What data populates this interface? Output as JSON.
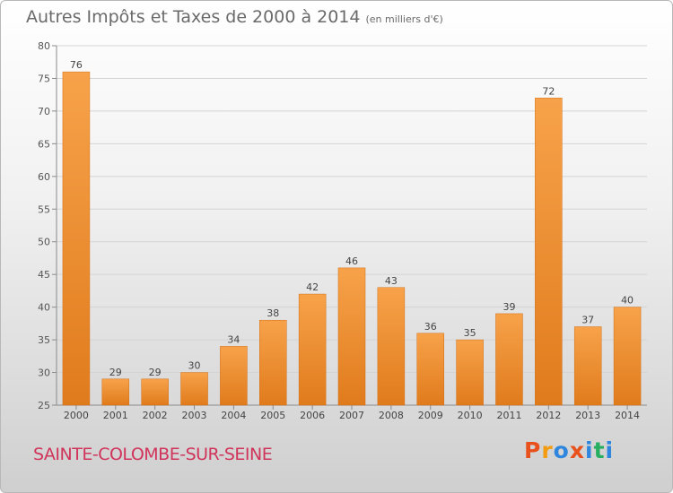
{
  "title": "Autres Impôts et Taxes de 2000 à 2014",
  "unit": "(en milliers d'€)",
  "commune": "SAINTE-COLOMBE-SUR-SEINE",
  "logo": "Proxiti",
  "colors": {
    "bar_light": "#f7a24a",
    "bar_dark": "#e07b1c",
    "commune_text": "#d1345b",
    "logo_letters": [
      "#e8501c",
      "#f39c12",
      "#2e86de",
      "#e8501c",
      "#2e86de",
      "#27ae60",
      "#2e86de"
    ]
  },
  "chart_data": {
    "type": "bar",
    "categories": [
      "2000",
      "2001",
      "2002",
      "2003",
      "2004",
      "2005",
      "2006",
      "2007",
      "2008",
      "2009",
      "2010",
      "2011",
      "2012",
      "2013",
      "2014"
    ],
    "values": [
      76,
      29,
      29,
      30,
      34,
      38,
      42,
      46,
      43,
      36,
      35,
      39,
      72,
      37,
      40
    ],
    "ylim": [
      25,
      80
    ],
    "yticks": [
      25,
      30,
      35,
      40,
      45,
      50,
      55,
      60,
      65,
      70,
      75,
      80
    ],
    "grid": true,
    "legend": "none",
    "xlabel": "",
    "ylabel": ""
  }
}
